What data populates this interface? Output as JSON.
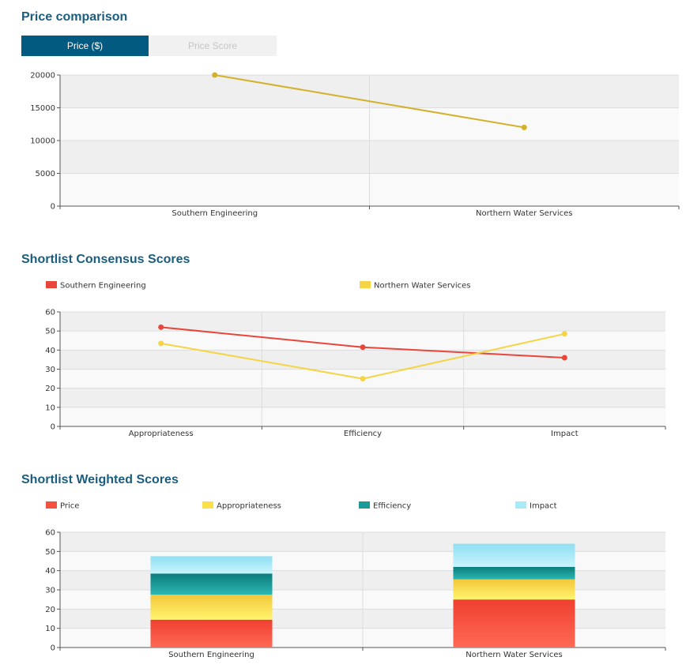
{
  "sections": {
    "price": {
      "title": "Price comparison"
    },
    "consensus": {
      "title": "Shortlist Consensus Scores"
    },
    "weighted": {
      "title": "Shortlist Weighted Scores"
    }
  },
  "tabs": [
    {
      "label": "Price ($)",
      "active": true
    },
    {
      "label": "Price Score",
      "active": false
    }
  ],
  "colors": {
    "price_line": "#d4b12a",
    "southern": "#e8463a",
    "northern": "#f5d445",
    "seg_price": "#f4523e",
    "seg_appropriateness": "#fbe04a",
    "seg_efficiency": "#1a9b98",
    "seg_impact": "#a8eaf8"
  },
  "chart_data": [
    {
      "type": "line",
      "title": "Price comparison",
      "categories": [
        "Southern Engineering",
        "Northern Water Services"
      ],
      "series": [
        {
          "values": [
            20000,
            12000
          ]
        }
      ],
      "ylim": [
        0,
        20000
      ],
      "yticks": [
        0,
        5000,
        10000,
        15000,
        20000
      ],
      "grid": true,
      "legend": "none"
    },
    {
      "type": "line",
      "title": "Shortlist Consensus Scores",
      "categories": [
        "Appropriateness",
        "Efficiency",
        "Impact"
      ],
      "series": [
        {
          "name": "Southern Engineering",
          "values": [
            52,
            41.5,
            36
          ]
        },
        {
          "name": "Northern Water Services",
          "values": [
            43.5,
            25,
            48.5
          ]
        }
      ],
      "ylim": [
        0,
        60
      ],
      "yticks": [
        0,
        10,
        20,
        30,
        40,
        50,
        60
      ],
      "grid": true,
      "legend": "top"
    },
    {
      "type": "bar",
      "stacked": true,
      "title": "Shortlist Weighted Scores",
      "categories": [
        "Southern Engineering",
        "Northern Water Services"
      ],
      "series": [
        {
          "name": "Price",
          "values": [
            14.5,
            25
          ]
        },
        {
          "name": "Appropriateness",
          "values": [
            13,
            10.5
          ]
        },
        {
          "name": "Efficiency",
          "values": [
            11,
            6.5
          ]
        },
        {
          "name": "Impact",
          "values": [
            9,
            12
          ]
        }
      ],
      "ylim": [
        0,
        60
      ],
      "yticks": [
        0,
        10,
        20,
        30,
        40,
        50,
        60
      ],
      "grid": true,
      "legend": "top"
    }
  ]
}
